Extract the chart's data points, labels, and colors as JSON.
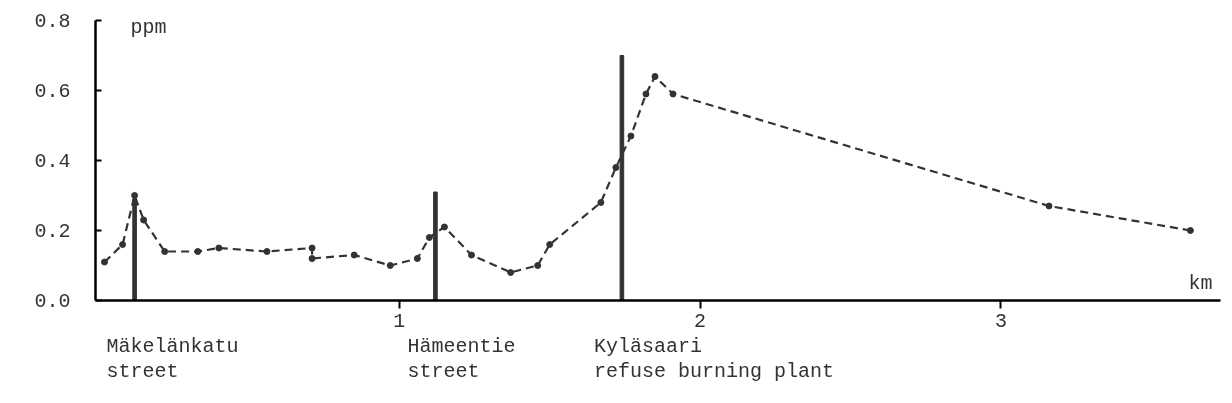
{
  "chart_data": {
    "type": "line",
    "ylabel": "ppm",
    "xlabel": "km",
    "xlim": [
      -0.01,
      3.73
    ],
    "ylim": [
      0,
      0.8
    ],
    "xticks": [
      1,
      2,
      3
    ],
    "yticks": [
      {
        "value": 0,
        "label": "0.0"
      },
      {
        "value": 0.2,
        "label": "0.2"
      },
      {
        "value": 0.4,
        "label": "0.4"
      },
      {
        "value": 0.6,
        "label": "0.6"
      },
      {
        "value": 0.8,
        "label": "0.8"
      }
    ],
    "grid": false,
    "marker": "circle",
    "line_style": "dashed",
    "series": [
      {
        "color": "#333333",
        "x": [
          0.02,
          0.08,
          0.12,
          0.15,
          0.22,
          0.33,
          0.4,
          0.56,
          0.71,
          0.71,
          0.85,
          0.97,
          1.06,
          1.1,
          1.15,
          1.24,
          1.37,
          1.46,
          1.5,
          1.67,
          1.72,
          1.77,
          1.82,
          1.85,
          1.91,
          3.16,
          3.63
        ],
        "values": [
          0.11,
          0.16,
          0.3,
          0.23,
          0.14,
          0.14,
          0.15,
          0.14,
          0.15,
          0.12,
          0.13,
          0.1,
          0.12,
          0.18,
          0.21,
          0.13,
          0.08,
          0.1,
          0.16,
          0.28,
          0.38,
          0.47,
          0.59,
          0.64,
          0.59,
          0.27,
          0.2
        ]
      },
      {
        "type": "bar",
        "color": "#333333",
        "x": [
          0.12,
          1.12,
          1.74
        ],
        "values": [
          0.29,
          0.31,
          0.7
        ]
      }
    ],
    "annotations": [
      "Mäkelänkatu street",
      "Hämeentie street",
      "Kyläsaari refuse burning plant"
    ]
  }
}
